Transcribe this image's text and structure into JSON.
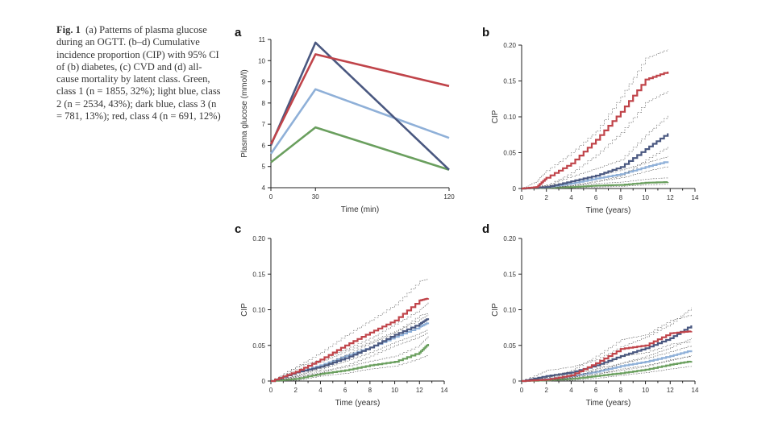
{
  "caption": {
    "lead": "Fig. 1",
    "text": "(a) Patterns of plasma glucose during an OGTT. (b–d) Cumulative incidence proportion (CIP) with 95% CI of (b) diabetes, (c) CVD and (d) all-cause mortality by latent class. Green, class 1 (n = 1855, 32%); light blue, class 2 (n = 2534, 43%); dark blue, class 3 (n = 781, 13%); red, class 4 (n = 691, 12%)"
  },
  "colors": {
    "class1": "#6a9f5e",
    "class2": "#8fb0d8",
    "class3": "#4a5880",
    "class4": "#c0444a",
    "ci": "#555555"
  },
  "chart_data": [
    {
      "panel": "a",
      "type": "line",
      "title": "",
      "xlabel": "Time (min)",
      "ylabel": "Plasma glucose (mmol/l)",
      "x": [
        0,
        30,
        120
      ],
      "xticks": [
        "0",
        "30",
        "120"
      ],
      "yticks": [
        "4",
        "5",
        "6",
        "7",
        "8",
        "9",
        "10",
        "11"
      ],
      "xlim": [
        0,
        120
      ],
      "ylim": [
        4,
        11
      ],
      "series": [
        {
          "name": "class 1 (green)",
          "color_key": "class1",
          "values": [
            5.2,
            6.85,
            4.85
          ]
        },
        {
          "name": "class 2 (light blue)",
          "color_key": "class2",
          "values": [
            5.6,
            8.65,
            6.35
          ]
        },
        {
          "name": "class 3 (dark blue)",
          "color_key": "class3",
          "values": [
            6.0,
            10.85,
            4.85
          ]
        },
        {
          "name": "class 4 (red)",
          "color_key": "class4",
          "values": [
            6.05,
            10.3,
            8.8
          ]
        }
      ]
    },
    {
      "panel": "b",
      "type": "line",
      "xlabel": "Time (years)",
      "ylabel": "CIP",
      "xticks": [
        "0",
        "2",
        "4",
        "6",
        "8",
        "10",
        "12",
        "14"
      ],
      "yticks": [
        "0",
        "0.05",
        "0.10",
        "0.15",
        "0.20"
      ],
      "xlim": [
        0,
        14
      ],
      "ylim": [
        0,
        0.2
      ],
      "series": [
        {
          "name": "class 1 (green)",
          "color_key": "class1",
          "x": [
            0,
            2,
            4,
            6,
            8,
            10,
            11.8
          ],
          "values": [
            0,
            0.001,
            0.002,
            0.004,
            0.005,
            0.008,
            0.009
          ],
          "lower": [
            0,
            0,
            0.001,
            0.002,
            0.003,
            0.005,
            0.006
          ],
          "upper": [
            0,
            0.002,
            0.004,
            0.007,
            0.009,
            0.013,
            0.015
          ]
        },
        {
          "name": "class 2 (light blue)",
          "color_key": "class2",
          "x": [
            0,
            2,
            4,
            6,
            8,
            10,
            11.8
          ],
          "values": [
            0,
            0.002,
            0.007,
            0.014,
            0.02,
            0.03,
            0.038
          ],
          "lower": [
            0,
            0.001,
            0.004,
            0.01,
            0.015,
            0.024,
            0.031
          ],
          "upper": [
            0,
            0.004,
            0.01,
            0.018,
            0.026,
            0.036,
            0.045
          ]
        },
        {
          "name": "class 3 (dark blue)",
          "color_key": "class3",
          "x": [
            0,
            2,
            4,
            6,
            8,
            10,
            11.8
          ],
          "values": [
            0,
            0.002,
            0.01,
            0.018,
            0.03,
            0.055,
            0.077
          ],
          "lower": [
            0,
            0,
            0.004,
            0.01,
            0.018,
            0.04,
            0.058
          ],
          "upper": [
            0,
            0.005,
            0.017,
            0.028,
            0.04,
            0.075,
            0.102
          ]
        },
        {
          "name": "class 4 (red)",
          "color_key": "class4",
          "x": [
            0,
            1.2,
            2,
            4,
            6,
            8,
            10,
            11.8
          ],
          "values": [
            0,
            0.002,
            0.015,
            0.035,
            0.068,
            0.107,
            0.152,
            0.163
          ],
          "lower": [
            0,
            0,
            0.004,
            0.022,
            0.047,
            0.078,
            0.12,
            0.136
          ],
          "upper": [
            0,
            0.01,
            0.025,
            0.05,
            0.08,
            0.128,
            0.182,
            0.194
          ]
        }
      ]
    },
    {
      "panel": "c",
      "type": "line",
      "xlabel": "Time (years)",
      "ylabel": "CIP",
      "xticks": [
        "0",
        "2",
        "4",
        "6",
        "8",
        "10",
        "12",
        "14"
      ],
      "yticks": [
        "0",
        "0.05",
        "0.10",
        "0.15",
        "0.20"
      ],
      "xlim": [
        0,
        14
      ],
      "ylim": [
        0,
        0.2
      ],
      "series": [
        {
          "name": "class 1 (green)",
          "color_key": "class1",
          "x": [
            0,
            2,
            4,
            6,
            8,
            10,
            12,
            12.7
          ],
          "values": [
            0,
            0.003,
            0.01,
            0.015,
            0.022,
            0.027,
            0.04,
            0.052
          ],
          "lower": [
            0,
            0.001,
            0.007,
            0.011,
            0.017,
            0.021,
            0.032,
            0.036
          ],
          "upper": [
            0,
            0.006,
            0.014,
            0.02,
            0.028,
            0.035,
            0.05,
            0.063
          ]
        },
        {
          "name": "class 2 (light blue)",
          "color_key": "class2",
          "x": [
            0,
            2,
            4,
            6,
            8,
            10,
            12,
            12.7
          ],
          "values": [
            0,
            0.012,
            0.022,
            0.035,
            0.047,
            0.062,
            0.076,
            0.082
          ],
          "lower": [
            0,
            0.008,
            0.017,
            0.028,
            0.04,
            0.055,
            0.067,
            0.072
          ],
          "upper": [
            0,
            0.016,
            0.027,
            0.042,
            0.055,
            0.07,
            0.086,
            0.093
          ]
        },
        {
          "name": "class 3 (dark blue)",
          "color_key": "class3",
          "x": [
            0,
            2,
            4,
            6,
            8,
            10,
            12,
            12.7
          ],
          "values": [
            0,
            0.012,
            0.02,
            0.032,
            0.047,
            0.065,
            0.08,
            0.088
          ],
          "lower": [
            0,
            0.005,
            0.012,
            0.022,
            0.035,
            0.05,
            0.062,
            0.068
          ],
          "upper": [
            0,
            0.02,
            0.03,
            0.045,
            0.06,
            0.08,
            0.1,
            0.11
          ]
        },
        {
          "name": "class 4 (red)",
          "color_key": "class4",
          "x": [
            0,
            2,
            4,
            6,
            8,
            10,
            12,
            12.7
          ],
          "values": [
            0,
            0.013,
            0.03,
            0.05,
            0.068,
            0.085,
            0.113,
            0.116
          ],
          "lower": [
            0,
            0.007,
            0.02,
            0.037,
            0.053,
            0.068,
            0.092,
            0.095
          ],
          "upper": [
            0,
            0.02,
            0.04,
            0.064,
            0.085,
            0.107,
            0.14,
            0.143
          ]
        }
      ]
    },
    {
      "panel": "d",
      "type": "line",
      "xlabel": "Time (years)",
      "ylabel": "CIP",
      "xticks": [
        "0",
        "2",
        "4",
        "6",
        "8",
        "10",
        "12",
        "14"
      ],
      "yticks": [
        "0",
        "0.05",
        "0.10",
        "0.15",
        "0.20"
      ],
      "xlim": [
        0,
        14
      ],
      "ylim": [
        0,
        0.2
      ],
      "series": [
        {
          "name": "class 1 (green)",
          "color_key": "class1",
          "x": [
            0,
            2,
            4,
            6,
            8,
            10,
            12,
            13.7
          ],
          "values": [
            0,
            0.001,
            0.003,
            0.007,
            0.011,
            0.016,
            0.023,
            0.028
          ],
          "lower": [
            0,
            0,
            0.001,
            0.004,
            0.008,
            0.012,
            0.017,
            0.021
          ],
          "upper": [
            0,
            0.002,
            0.005,
            0.01,
            0.015,
            0.021,
            0.03,
            0.035
          ]
        },
        {
          "name": "class 2 (light blue)",
          "color_key": "class2",
          "x": [
            0,
            2,
            4,
            6,
            8,
            10,
            12,
            13.7
          ],
          "values": [
            0,
            0.003,
            0.007,
            0.013,
            0.021,
            0.027,
            0.035,
            0.043
          ],
          "lower": [
            0,
            0.001,
            0.005,
            0.01,
            0.017,
            0.022,
            0.029,
            0.036
          ],
          "upper": [
            0,
            0.005,
            0.01,
            0.017,
            0.025,
            0.032,
            0.041,
            0.05
          ]
        },
        {
          "name": "class 3 (dark blue)",
          "color_key": "class3",
          "x": [
            0,
            2,
            4,
            6,
            8,
            10,
            12,
            13.7
          ],
          "values": [
            0,
            0.007,
            0.012,
            0.022,
            0.035,
            0.046,
            0.06,
            0.078
          ],
          "lower": [
            0,
            0.002,
            0.006,
            0.014,
            0.025,
            0.035,
            0.047,
            0.06
          ],
          "upper": [
            0,
            0.015,
            0.02,
            0.03,
            0.048,
            0.062,
            0.08,
            0.103
          ]
        },
        {
          "name": "class 4 (red)",
          "color_key": "class4",
          "x": [
            0,
            2,
            4,
            6,
            8,
            10,
            12,
            13.7
          ],
          "values": [
            0,
            0.002,
            0.008,
            0.025,
            0.045,
            0.05,
            0.067,
            0.07
          ],
          "lower": [
            0,
            0,
            0.004,
            0.018,
            0.035,
            0.04,
            0.052,
            0.055
          ],
          "upper": [
            0,
            0.005,
            0.015,
            0.035,
            0.058,
            0.065,
            0.085,
            0.093
          ]
        }
      ]
    }
  ]
}
